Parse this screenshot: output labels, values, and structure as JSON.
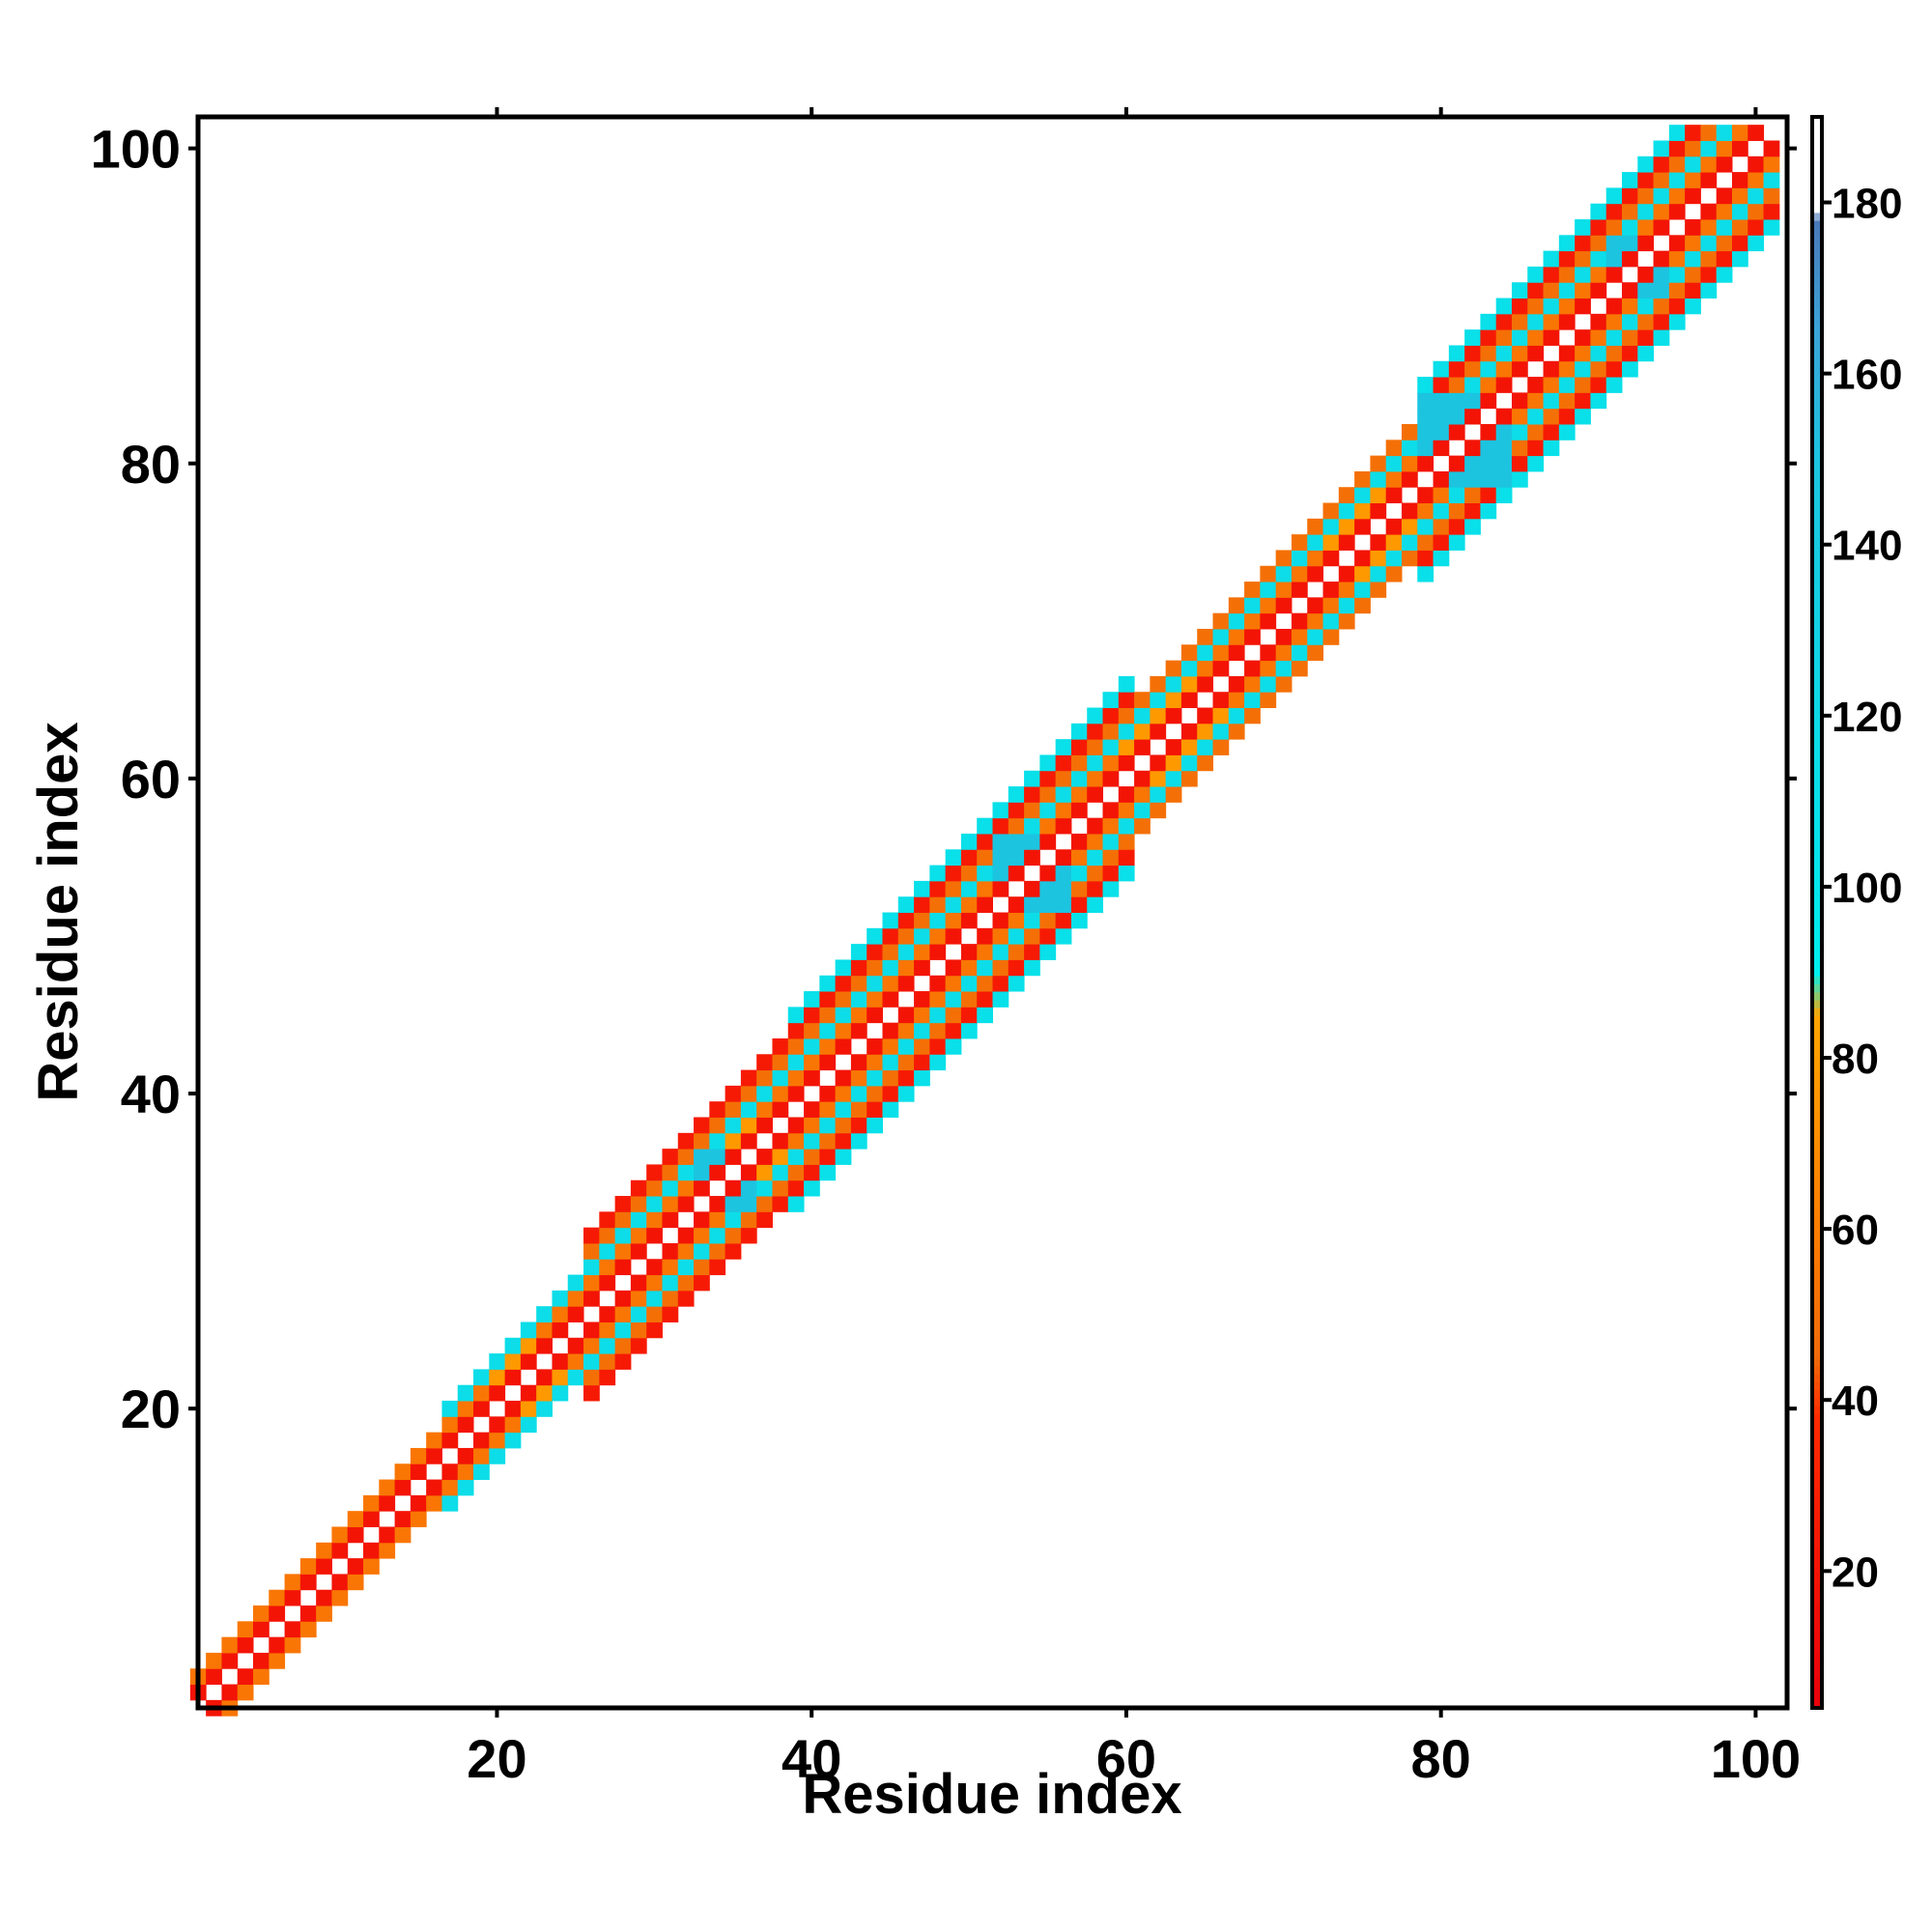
{
  "chart_data": {
    "type": "heatmap",
    "title": "",
    "xlabel": "Residue index",
    "ylabel": "Residue index",
    "xlim": [
      1,
      102
    ],
    "ylim": [
      1,
      102
    ],
    "xticks": [
      20,
      40,
      60,
      80,
      100
    ],
    "yticks": [
      20,
      40,
      60,
      80,
      100
    ],
    "colorbar": {
      "range": [
        4,
        190
      ],
      "ticks": [
        20,
        40,
        60,
        80,
        100,
        120,
        140,
        160,
        180
      ],
      "stops": [
        {
          "value": 4,
          "color": "#e8000b"
        },
        {
          "value": 38,
          "color": "#ff2a00"
        },
        {
          "value": 45,
          "color": "#f06a0a"
        },
        {
          "value": 62,
          "color": "#ff7f00"
        },
        {
          "value": 85,
          "color": "#ffa500"
        },
        {
          "value": 90,
          "color": "#00eeee"
        },
        {
          "value": 150,
          "color": "#1cc4e0"
        },
        {
          "value": 165,
          "color": "#3aa4d8"
        },
        {
          "value": 178,
          "color": "#4a78b8"
        },
        {
          "value": 179,
          "color": "#ffffff"
        },
        {
          "value": 190,
          "color": "#ffffff"
        }
      ]
    },
    "band": {
      "description_values": "pairwise values around the diagonal |i-j|<=band half-width",
      "segments": [
        {
          "from": 1,
          "to": 16,
          "half_width": 2
        },
        {
          "from": 17,
          "to": 25,
          "half_width": 3
        },
        {
          "from": 26,
          "to": 38,
          "half_width": 5
        },
        {
          "from": 39,
          "to": 60,
          "half_width": 6
        },
        {
          "from": 61,
          "to": 78,
          "half_width": 4
        },
        {
          "from": 79,
          "to": 102,
          "half_width": 6
        }
      ],
      "value_by_offset": {
        "1": 20,
        "2": 55,
        "3": 115,
        "4": 50,
        "5": 25,
        "6": 110
      },
      "blue_regions": [
        [
          79,
          84
        ],
        [
          91,
          94
        ],
        [
          33,
          36
        ],
        [
          52,
          56
        ]
      ],
      "gold_regions": [
        [
          20,
          24
        ],
        [
          60,
          66
        ],
        [
          73,
          78
        ],
        [
          34,
          38
        ]
      ]
    }
  }
}
